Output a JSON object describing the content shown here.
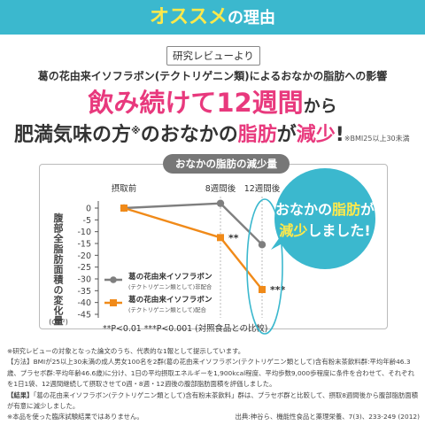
{
  "header": {
    "main": "オススメ",
    "sub": "の理由"
  },
  "tag": "研究レビューより",
  "subtitle": "葛の花由来イソフラボン(テクトリゲニン類)によるおなかの脂肪への影響",
  "headline1": {
    "big": "飲み続けて12週間",
    "small": "から"
  },
  "headline2": {
    "part1": "肥満気味の方",
    "sup": "※",
    "part2": "のおなかの",
    "pink": "脂肪",
    "part3": "が",
    "pink2": "減少",
    "part4": "!",
    "note": "※BMI25以上30未満"
  },
  "chart_title": "おなかの脂肪の減少量",
  "callout": {
    "line1a": "おなかの",
    "line1b": "脂肪",
    "line1c": "が",
    "line2a": "減少",
    "line2b": "しました!"
  },
  "chart_data": {
    "type": "line",
    "categories": [
      "摂取前",
      "8週間後",
      "12週間後"
    ],
    "ylabel": "腹部全脂肪面積の変化量",
    "yunit": "(cm²)",
    "ylim": [
      -45,
      0
    ],
    "yticks": [
      0,
      -5,
      -10,
      -15,
      -20,
      -25,
      -30,
      -35,
      -40,
      -45
    ],
    "grid": false,
    "legend_position": "lower-left",
    "series": [
      {
        "name": "葛の花由来イソフラボン",
        "name_sub": "(テクトリゲニン類として)非配合",
        "color": "#7f7f7f",
        "marker": "circle",
        "values": [
          0,
          2,
          -15.5
        ]
      },
      {
        "name": "葛の花由来イソフラボン",
        "name_sub": "(テクトリゲニン類として)配合",
        "color": "#f08a19",
        "marker": "square",
        "values": [
          0,
          -12.5,
          -34.5
        ]
      }
    ],
    "annotations": [
      {
        "text": "**",
        "category": "8週間後",
        "series": 1
      },
      {
        "text": "***",
        "category": "12週間後",
        "series": 1
      }
    ],
    "footnote": "**P<0.01 ***P<0.001 (対照食品との比較)"
  },
  "notes": {
    "line1": "※研究レビューの対象となった論文のうち、代表的な1報として提示しています。",
    "method_label": "【方法】",
    "method": "BMIが25以上30未満の成人男女100名を2群(葛の花由来イソフラボン(テクトリゲニン類として)含有粉末茶飲料群:平均年齢46.3歳、プラセボ群:平均年齢46.6歳)に分け、1日の平均摂取エネルギーを1,900kcal程度、平均歩数9,000歩程度に条件を合わせて、それぞれを1日1袋、12週間継続して摂取させて0週・8週・12週後の腹部脂肪面積を評価しました。",
    "result_label": "【結果】",
    "result": "「葛の花由来イソフラボン(テクトリゲニン類として)含有粉末茶飲料」群は、プラセボ群と比較して、摂取8週間後から腹部脂肪面積が有意に減少しました。",
    "clinical": "※本品を使った臨床試験結果ではありません。",
    "source": "出典:神谷ら、機能性食品と薬理栄養、7(3)、233-249 (2012)"
  }
}
